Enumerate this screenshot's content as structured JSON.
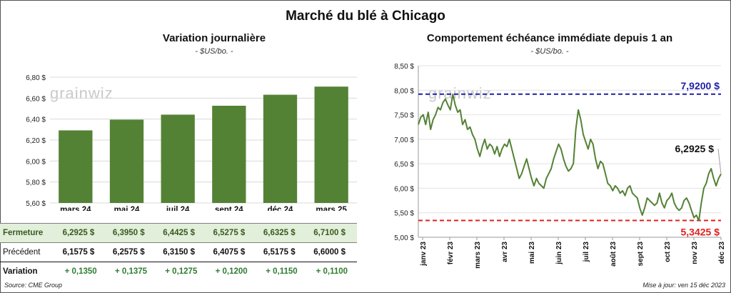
{
  "title": "Marché du blé à Chicago",
  "source": "Source: CME Group",
  "updated": "Mise à jour: ven 15 déc 2023",
  "watermark": "grainwiz",
  "colors": {
    "bar": "#548235",
    "line": "#548235",
    "high": "#1f1fa8",
    "low": "#e02020"
  },
  "table": {
    "close_label": "Fermeture",
    "prev_label": "Précédent",
    "var_label": "Variation",
    "close": [
      "6,2925  $",
      "6,3950  $",
      "6,4425  $",
      "6,5275  $",
      "6,6325  $",
      "6,7100  $"
    ],
    "prev": [
      "6,1575  $",
      "6,2575  $",
      "6,3150  $",
      "6,4075  $",
      "6,5175  $",
      "6,6000  $"
    ],
    "var": [
      "+ 0,1350",
      "+ 0,1375",
      "+ 0,1275",
      "+ 0,1200",
      "+ 0,1150",
      "+ 0,1100"
    ]
  },
  "chart_data": [
    {
      "type": "bar",
      "title": "Variation  journalière",
      "subtitle": "- $US/bo. -",
      "categories": [
        "mars 24",
        "mai 24",
        "juil 24",
        "sept 24",
        "déc 24",
        "mars 25"
      ],
      "values": [
        6.2925,
        6.395,
        6.4425,
        6.5275,
        6.6325,
        6.71
      ],
      "ylim": [
        5.6,
        6.8
      ],
      "yticks": [
        "5,60 $",
        "5,80 $",
        "6,00 $",
        "6,20 $",
        "6,40 $",
        "6,60 $",
        "6,80 $"
      ],
      "grid": true
    },
    {
      "type": "line",
      "title": "Comportement  échéance immédiate depuis 1 an",
      "subtitle": "- $US/bo. -",
      "ylim": [
        5.0,
        8.5
      ],
      "yticks": [
        "5,00 $",
        "5,50 $",
        "6,00 $",
        "6,50 $",
        "7,00 $",
        "7,50 $",
        "8,00 $",
        "8,50 $"
      ],
      "xticks": [
        "janv 23",
        "févr 23",
        "mars 23",
        "avr 23",
        "mai 23",
        "juin 23",
        "juil 23",
        "août 23",
        "sept 23",
        "oct 23",
        "nov 23",
        "déc 23"
      ],
      "high": 7.92,
      "high_label": "7,9200  $",
      "low": 5.3425,
      "low_label": "5,3425  $",
      "last_label": "6,2925 $",
      "series": [
        {
          "values": [
            7.3,
            7.45,
            7.5,
            7.3,
            7.55,
            7.2,
            7.4,
            7.5,
            7.65,
            7.6,
            7.75,
            7.82,
            7.7,
            7.6,
            7.92,
            7.7,
            7.55,
            7.6,
            7.3,
            7.4,
            7.2,
            7.25,
            7.1,
            7.0,
            6.8,
            6.65,
            6.85,
            7.0,
            6.8,
            6.9,
            6.85,
            6.7,
            6.85,
            6.65,
            6.8,
            6.9,
            6.85,
            7.0,
            6.8,
            6.6,
            6.4,
            6.2,
            6.3,
            6.45,
            6.6,
            6.4,
            6.2,
            6.05,
            6.2,
            6.1,
            6.05,
            6.0,
            6.2,
            6.3,
            6.4,
            6.6,
            6.75,
            6.9,
            6.8,
            6.6,
            6.45,
            6.35,
            6.4,
            6.5,
            7.2,
            7.6,
            7.4,
            7.1,
            6.95,
            6.8,
            7.0,
            6.9,
            6.6,
            6.4,
            6.55,
            6.5,
            6.3,
            6.1,
            6.05,
            5.95,
            6.05,
            6.0,
            5.9,
            5.95,
            5.85,
            6.0,
            6.05,
            5.9,
            5.85,
            5.8,
            5.6,
            5.45,
            5.6,
            5.8,
            5.75,
            5.7,
            5.65,
            5.7,
            5.9,
            5.7,
            5.6,
            5.75,
            5.8,
            5.9,
            5.7,
            5.6,
            5.55,
            5.6,
            5.75,
            5.8,
            5.7,
            5.55,
            5.4,
            5.45,
            5.34,
            5.7,
            6.0,
            6.1,
            6.3,
            6.4,
            6.2,
            6.05,
            6.2,
            6.29
          ]
        }
      ]
    }
  ]
}
